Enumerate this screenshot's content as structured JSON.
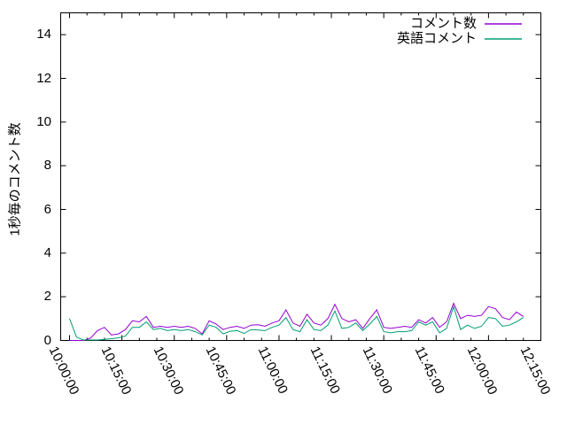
{
  "chart_data": {
    "type": "line",
    "title": "",
    "xlabel": "",
    "ylabel": "1秒毎のコメント数",
    "x_start": "10:00:00",
    "x_step_seconds": 120,
    "x_tick_labels": [
      "10:00:00",
      "10:15:00",
      "10:30:00",
      "10:45:00",
      "11:00:00",
      "11:15:00",
      "11:30:00",
      "11:45:00",
      "12:00:00",
      "12:15:00"
    ],
    "x_minor_tick_minutes": 5,
    "y_ticks": [
      0,
      2,
      4,
      6,
      8,
      10,
      12,
      14
    ],
    "ylim": [
      0,
      15
    ],
    "grid": false,
    "legend_position": "top-right-inside",
    "series": [
      {
        "name": "コメント数",
        "color": "#9400d3",
        "values": [
          0,
          0,
          0,
          0.1,
          0.45,
          0.6,
          0.25,
          0.3,
          0.5,
          0.9,
          0.85,
          1.1,
          0.6,
          0.65,
          0.6,
          0.65,
          0.6,
          0.65,
          0.55,
          0.3,
          0.9,
          0.75,
          0.5,
          0.6,
          0.65,
          0.55,
          0.7,
          0.72,
          0.65,
          0.8,
          0.9,
          1.4,
          0.8,
          0.65,
          1.2,
          0.8,
          0.7,
          1.0,
          1.65,
          1.0,
          0.85,
          0.95,
          0.55,
          1.0,
          1.4,
          0.6,
          0.55,
          0.6,
          0.65,
          0.6,
          0.95,
          0.8,
          1.05,
          0.6,
          0.85,
          1.7,
          1.0,
          1.15,
          1.1,
          1.15,
          1.55,
          1.45,
          1.05,
          0.95,
          1.3,
          1.1
        ]
      },
      {
        "name": "英語コメント",
        "color": "#009e73",
        "values": [
          1.0,
          0.15,
          0.02,
          0.02,
          0.02,
          0.05,
          0.08,
          0.12,
          0.2,
          0.6,
          0.6,
          0.85,
          0.5,
          0.55,
          0.45,
          0.5,
          0.45,
          0.5,
          0.4,
          0.25,
          0.7,
          0.6,
          0.3,
          0.42,
          0.45,
          0.32,
          0.5,
          0.48,
          0.45,
          0.6,
          0.7,
          1.05,
          0.5,
          0.4,
          0.95,
          0.5,
          0.45,
          0.7,
          1.35,
          0.55,
          0.6,
          0.8,
          0.45,
          0.75,
          1.1,
          0.4,
          0.35,
          0.4,
          0.4,
          0.45,
          0.85,
          0.7,
          0.85,
          0.35,
          0.55,
          1.55,
          0.5,
          0.7,
          0.55,
          0.65,
          1.05,
          1.0,
          0.65,
          0.7,
          0.85,
          1.05
        ]
      }
    ]
  }
}
